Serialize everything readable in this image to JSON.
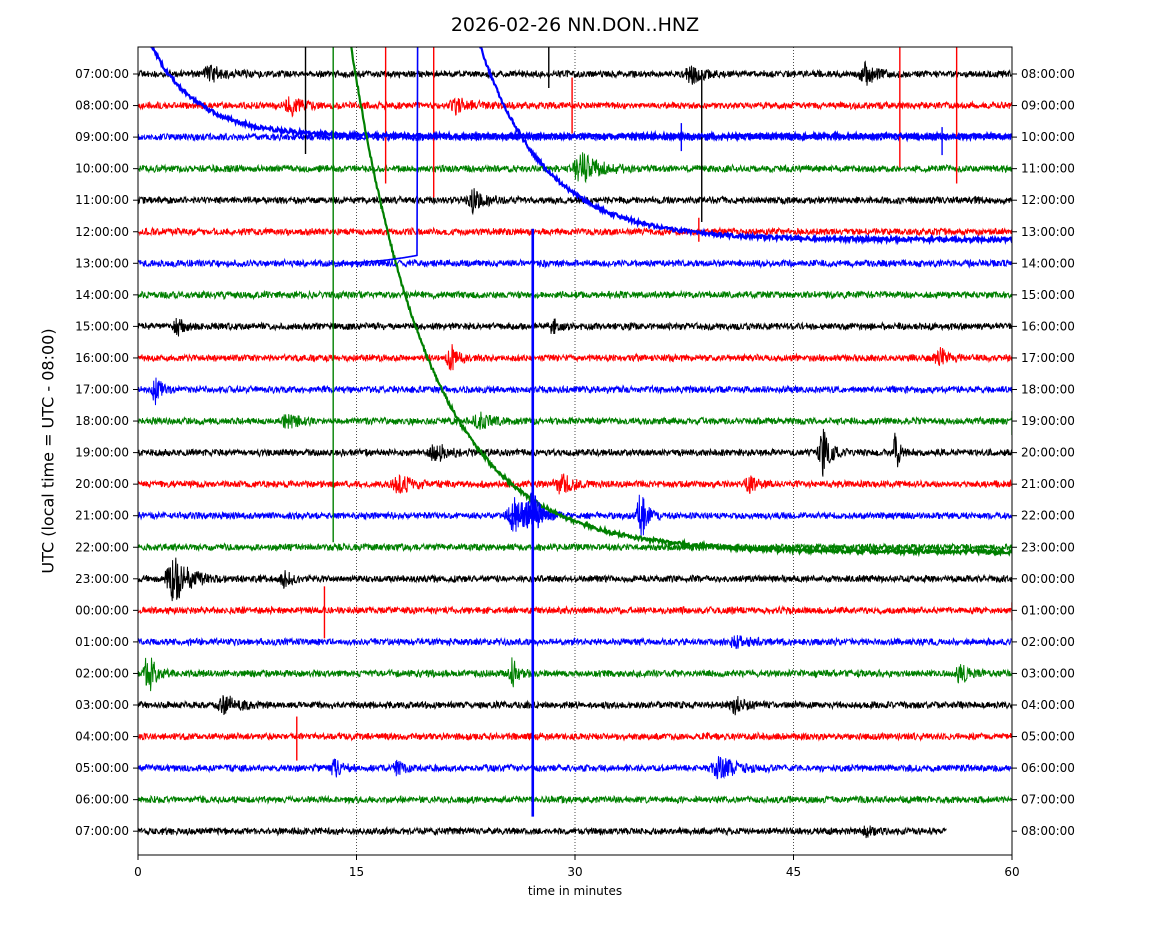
{
  "chart_data": {
    "type": "line",
    "title": "2026-02-26 NN.DON..HNZ",
    "xlabel": "time in minutes",
    "ylabel": "UTC (local time = UTC - 08:00)",
    "xlim": [
      0,
      60
    ],
    "xticks": [
      0,
      15,
      30,
      45,
      60
    ],
    "grid": "vertical dotted lines at 15, 30, 45",
    "colors_cycle": [
      "#000000",
      "#ff0000",
      "#0000ff",
      "#008000"
    ],
    "rows_left_labels": [
      "07:00:00",
      "08:00:00",
      "09:00:00",
      "10:00:00",
      "11:00:00",
      "12:00:00",
      "13:00:00",
      "14:00:00",
      "15:00:00",
      "16:00:00",
      "17:00:00",
      "18:00:00",
      "19:00:00",
      "20:00:00",
      "21:00:00",
      "22:00:00",
      "23:00:00",
      "00:00:00",
      "01:00:00",
      "02:00:00",
      "03:00:00",
      "04:00:00",
      "05:00:00",
      "06:00:00",
      "07:00:00"
    ],
    "rows_right_labels": [
      "08:00:00",
      "09:00:00",
      "10:00:00",
      "11:00:00",
      "12:00:00",
      "13:00:00",
      "14:00:00",
      "15:00:00",
      "16:00:00",
      "17:00:00",
      "18:00:00",
      "19:00:00",
      "20:00:00",
      "21:00:00",
      "22:00:00",
      "23:00:00",
      "00:00:00",
      "01:00:00",
      "02:00:00",
      "03:00:00",
      "04:00:00",
      "05:00:00",
      "06:00:00",
      "07:00:00",
      "08:00:00"
    ],
    "last_row_end_minute": 55.5,
    "events": [
      {
        "row": 0,
        "minute": 50,
        "amp": 10,
        "width": 1.0
      },
      {
        "row": 0,
        "minute": 38,
        "amp": 8,
        "width": 1.0
      },
      {
        "row": 0,
        "minute": 5,
        "amp": 7,
        "width": 1.2
      },
      {
        "row": 1,
        "minute": 22,
        "amp": 8,
        "width": 1.2
      },
      {
        "row": 1,
        "minute": 10.5,
        "amp": 10,
        "width": 0.8
      },
      {
        "row": 3,
        "minute": 30.5,
        "amp": 14,
        "width": 1.5
      },
      {
        "row": 4,
        "minute": 23,
        "amp": 10,
        "width": 1.2
      },
      {
        "row": 8,
        "minute": 2.7,
        "amp": 8,
        "width": 0.6
      },
      {
        "row": 8,
        "minute": 28.5,
        "amp": 8,
        "width": 0.6
      },
      {
        "row": 9,
        "minute": 21.5,
        "amp": 12,
        "width": 0.7
      },
      {
        "row": 9,
        "minute": 55,
        "amp": 10,
        "width": 0.7
      },
      {
        "row": 10,
        "minute": 1.2,
        "amp": 14,
        "width": 0.5
      },
      {
        "row": 11,
        "minute": 10.3,
        "amp": 7,
        "width": 0.8
      },
      {
        "row": 11,
        "minute": 23.5,
        "amp": 8,
        "width": 1.0
      },
      {
        "row": 12,
        "minute": 20.5,
        "amp": 8,
        "width": 1.2
      },
      {
        "row": 12,
        "minute": 47,
        "amp": 26,
        "width": 0.6
      },
      {
        "row": 12,
        "minute": 52,
        "amp": 22,
        "width": 0.3
      },
      {
        "row": 13,
        "minute": 18,
        "amp": 8,
        "width": 1.2
      },
      {
        "row": 13,
        "minute": 29,
        "amp": 10,
        "width": 1.0
      },
      {
        "row": 13,
        "minute": 42,
        "amp": 7,
        "width": 0.8
      },
      {
        "row": 14,
        "minute": 26,
        "amp": 18,
        "width": 1.3
      },
      {
        "row": 14,
        "minute": 34.5,
        "amp": 30,
        "width": 0.5
      },
      {
        "row": 16,
        "minute": 2.5,
        "amp": 24,
        "width": 1.2
      },
      {
        "row": 16,
        "minute": 10,
        "amp": 8,
        "width": 0.6
      },
      {
        "row": 18,
        "minute": 41,
        "amp": 6,
        "width": 1.0
      },
      {
        "row": 19,
        "minute": 0.7,
        "amp": 24,
        "width": 0.6
      },
      {
        "row": 19,
        "minute": 25.7,
        "amp": 14,
        "width": 0.5
      },
      {
        "row": 19,
        "minute": 56.5,
        "amp": 10,
        "width": 0.7
      },
      {
        "row": 20,
        "minute": 6,
        "amp": 8,
        "width": 1.2
      },
      {
        "row": 20,
        "minute": 41,
        "amp": 10,
        "width": 0.7
      },
      {
        "row": 22,
        "minute": 13.5,
        "amp": 8,
        "width": 0.6
      },
      {
        "row": 22,
        "minute": 17.8,
        "amp": 6,
        "width": 0.6
      },
      {
        "row": 22,
        "minute": 40,
        "amp": 10,
        "width": 1.4
      },
      {
        "row": 24,
        "minute": 50,
        "amp": 6,
        "width": 0.5
      }
    ],
    "spikes": [
      {
        "row": 0,
        "minute": 11.5,
        "dy": [
          -28,
          80
        ]
      },
      {
        "row": 0,
        "minute": 28.2,
        "dy": [
          -28,
          14
        ]
      },
      {
        "row": 1,
        "minute": 17,
        "dy": [
          -58,
          78
        ]
      },
      {
        "row": 1,
        "minute": 20.3,
        "dy": [
          -58,
          92
        ]
      },
      {
        "row": 1,
        "minute": 29.8,
        "dy": [
          -28,
          28
        ]
      },
      {
        "row": 1,
        "minute": 52.3,
        "dy": [
          -58,
          62
        ]
      },
      {
        "row": 1,
        "minute": 56.2,
        "dy": [
          -58,
          78
        ]
      },
      {
        "row": 0,
        "minute": 38.7,
        "dy": [
          -4,
          148
        ]
      },
      {
        "row": 2,
        "minute": 37.3,
        "dy": [
          -14,
          14
        ]
      },
      {
        "row": 2,
        "minute": 55.2,
        "dy": [
          -10,
          18
        ]
      },
      {
        "row": 5,
        "minute": 38.5,
        "dy": [
          -14,
          10
        ]
      },
      {
        "row": 17,
        "minute": 12.8,
        "dy": [
          -24,
          28
        ]
      },
      {
        "row": 21,
        "minute": 10.9,
        "dy": [
          -20,
          24
        ]
      },
      {
        "row": 17,
        "minute": 60,
        "dy": [
          -8,
          10
        ]
      },
      {
        "row": 11,
        "minute": 60,
        "dy": [
          -10,
          14
        ]
      },
      {
        "row": 5,
        "minute": 27.1,
        "dy": [
          0,
          0
        ]
      }
    ],
    "drift_traces": [
      {
        "name": "",
        "color": "#0000ff",
        "kind": "decay",
        "row": 0,
        "start_minute": 0,
        "start_dy": -58,
        "end_dy": 62,
        "tau": 3.2
      },
      {
        "name": "",
        "color": "#0000ff",
        "kind": "decay",
        "row": 3,
        "start_minute": 22.5,
        "start_dy": -170,
        "end_dy": 71,
        "tau": 4.5
      },
      {
        "name": "",
        "color": "#008000",
        "kind": "decay",
        "row": 11,
        "start_minute": 14.3,
        "start_dy": -405,
        "end_dy": 131,
        "tau": 5.5
      },
      {
        "name": "",
        "color": "#0000ff",
        "kind": "step",
        "row": 6,
        "start_minute": 13.3,
        "end_minute": 19.2,
        "from_dy": 0,
        "to_dy": -8,
        "drop_to_dy": -248
      },
      {
        "name": "",
        "color": "#008000",
        "kind": "vertical",
        "row": 15,
        "minute": 13.4,
        "from_dy": -5,
        "to_dy": -501
      }
    ],
    "big_event": {
      "color": "#0000ff",
      "minute": 27.1,
      "top_row": 5,
      "bottom_row": 23,
      "burst_row": 14,
      "burst_amp": 30
    }
  }
}
